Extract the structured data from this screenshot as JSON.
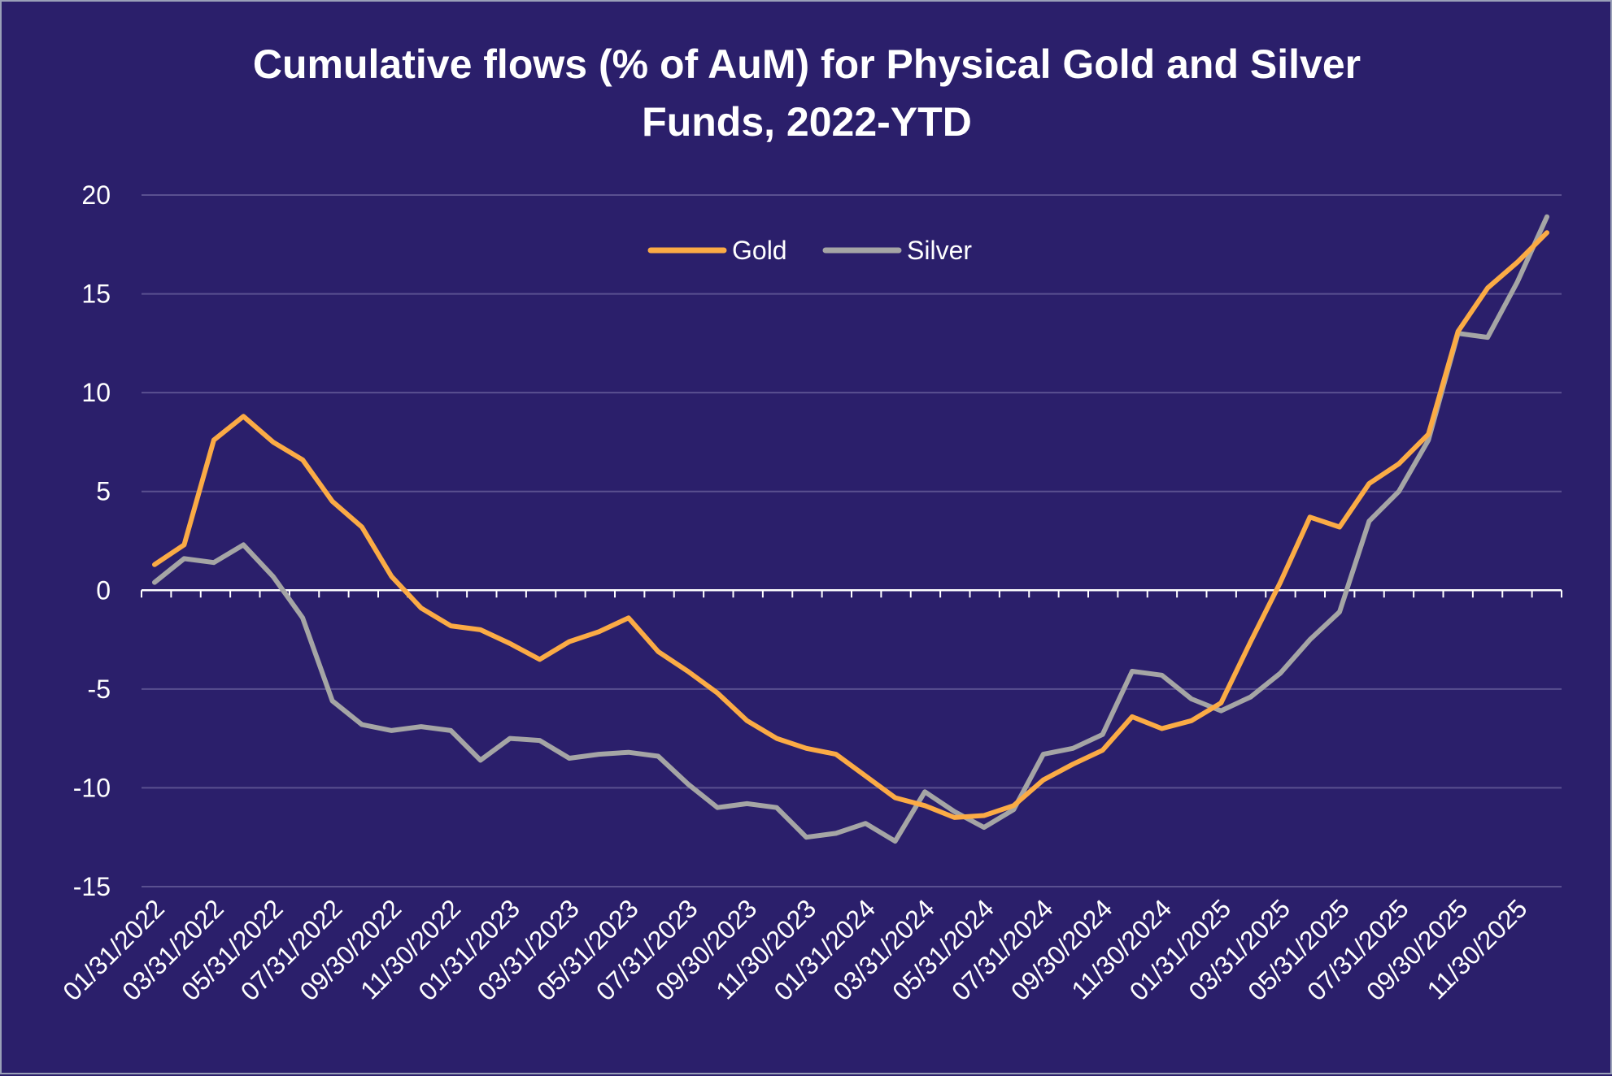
{
  "chart_data": {
    "type": "line",
    "title": "Cumulative flows (% of AuM) for Physical Gold and Silver",
    "title_line2": "Funds, 2022-YTD",
    "xlabel": "",
    "ylabel": "",
    "ylim": [
      -15,
      20
    ],
    "yticks": [
      20,
      15,
      10,
      5,
      0,
      -5,
      -10,
      -15
    ],
    "ytick_labels": [
      "20",
      "15",
      "10",
      "5",
      "0",
      "-5",
      "-10",
      "-15"
    ],
    "grid": true,
    "legend_position": "top-center",
    "x": [
      "01/31/2022",
      "02/28/2022",
      "03/31/2022",
      "04/30/2022",
      "05/31/2022",
      "06/30/2022",
      "07/31/2022",
      "08/31/2022",
      "09/30/2022",
      "10/31/2022",
      "11/30/2022",
      "12/31/2022",
      "01/31/2023",
      "02/28/2023",
      "03/31/2023",
      "04/30/2023",
      "05/31/2023",
      "06/30/2023",
      "07/31/2023",
      "08/31/2023",
      "09/30/2023",
      "10/31/2023",
      "11/30/2023",
      "12/31/2023",
      "01/31/2024",
      "02/29/2024",
      "03/31/2024",
      "04/30/2024",
      "05/31/2024",
      "06/30/2024",
      "07/31/2024",
      "08/31/2024",
      "09/30/2024",
      "10/31/2024",
      "11/30/2024",
      "12/31/2024",
      "01/31/2025",
      "02/28/2025",
      "03/31/2025",
      "04/30/2025",
      "05/31/2025",
      "06/30/2025",
      "07/31/2025",
      "08/31/2025",
      "09/30/2025",
      "10/31/2025",
      "11/30/2025",
      "12/31/2025"
    ],
    "x_tick_labels": [
      "01/31/2022",
      "03/31/2022",
      "05/31/2022",
      "07/31/2022",
      "09/30/2022",
      "11/30/2022",
      "01/31/2023",
      "03/31/2023",
      "05/31/2023",
      "07/31/2023",
      "09/30/2023",
      "11/30/2023",
      "01/31/2024",
      "03/31/2024",
      "05/31/2024",
      "07/31/2024",
      "09/30/2024",
      "11/30/2024",
      "01/31/2025",
      "03/31/2025",
      "05/31/2025",
      "07/31/2025",
      "09/30/2025",
      "11/30/2025"
    ],
    "series": [
      {
        "name": "Gold",
        "color": "#fbab45",
        "values": [
          1.3,
          2.3,
          7.6,
          8.8,
          7.5,
          6.6,
          4.5,
          3.2,
          0.7,
          -0.9,
          -1.8,
          -2.0,
          -2.7,
          -3.5,
          -2.6,
          -2.1,
          -1.4,
          -3.1,
          -4.1,
          -5.2,
          -6.6,
          -7.5,
          -8.0,
          -8.3,
          -9.4,
          -10.5,
          -10.9,
          -11.5,
          -11.4,
          -10.9,
          -9.6,
          -8.8,
          -8.1,
          -6.4,
          -7.0,
          -6.6,
          -5.7,
          -2.6,
          0.4,
          3.7,
          3.2,
          5.4,
          6.4,
          7.9,
          13.1,
          15.3,
          16.6,
          18.1
        ]
      },
      {
        "name": "Silver",
        "color": "#a5a5a5",
        "values": [
          0.4,
          1.6,
          1.4,
          2.3,
          0.7,
          -1.4,
          -5.6,
          -6.8,
          -7.1,
          -6.9,
          -7.1,
          -8.6,
          -7.5,
          -7.6,
          -8.5,
          -8.3,
          -8.2,
          -8.4,
          -9.8,
          -11.0,
          -10.8,
          -11.0,
          -12.5,
          -12.3,
          -11.8,
          -12.7,
          -10.2,
          -11.2,
          -12.0,
          -11.1,
          -8.3,
          -8.0,
          -7.3,
          -4.1,
          -4.3,
          -5.5,
          -6.1,
          -5.4,
          -4.2,
          -2.5,
          -1.1,
          3.5,
          5.0,
          7.6,
          13.0,
          12.8,
          15.6,
          18.9
        ]
      }
    ]
  },
  "colors": {
    "background": "#2b1f6b",
    "gridline": "#5a5090",
    "axis": "#ffffff",
    "border": "#9aa0b8"
  }
}
